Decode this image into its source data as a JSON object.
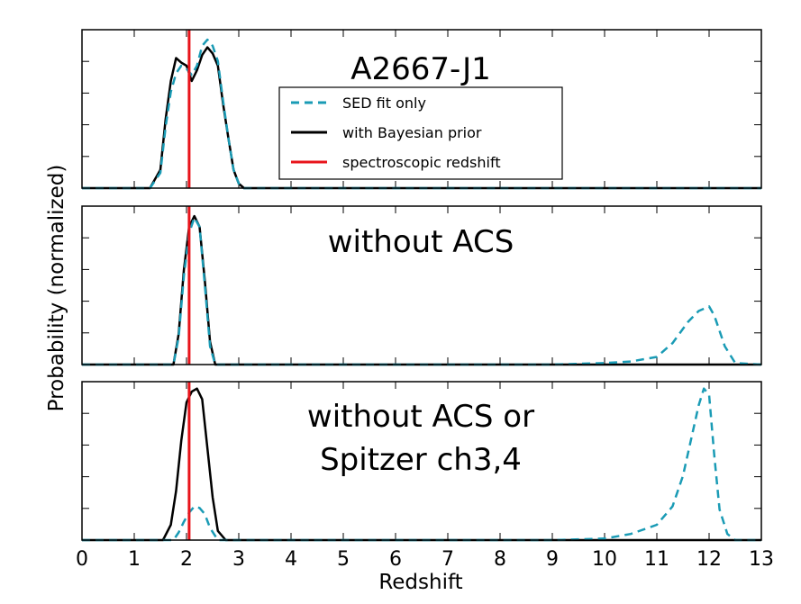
{
  "chart_data": {
    "type": "line",
    "xlabel": "Redshift",
    "ylabel": "Probability (normalized)",
    "xlim": [
      0,
      13
    ],
    "xticks": [
      "0",
      "1",
      "2",
      "3",
      "4",
      "5",
      "6",
      "7",
      "8",
      "9",
      "10",
      "11",
      "12",
      "13"
    ],
    "spectroscopic_redshift": 2.05,
    "legend": {
      "placement": "top-panel-center",
      "entries": [
        {
          "label": "SED fit only",
          "color": "#1a9bb5",
          "style": "dashed"
        },
        {
          "label": "with Bayesian prior",
          "color": "#000000",
          "style": "solid"
        },
        {
          "label": "spectroscopic redshift",
          "color": "#e8141b",
          "style": "solid"
        }
      ]
    },
    "panels": [
      {
        "title_lines": [
          "A2667-J1"
        ],
        "series": [
          {
            "name": "with Bayesian prior",
            "x": [
              0,
              1.3,
              1.5,
              1.6,
              1.7,
              1.8,
              1.9,
              2.0,
              2.1,
              2.2,
              2.3,
              2.4,
              2.5,
              2.6,
              2.7,
              2.8,
              2.9,
              3.0,
              3.1,
              13
            ],
            "y": [
              0,
              0,
              0.12,
              0.45,
              0.7,
              0.85,
              0.82,
              0.8,
              0.7,
              0.77,
              0.87,
              0.92,
              0.88,
              0.8,
              0.55,
              0.33,
              0.12,
              0.03,
              0,
              0
            ]
          },
          {
            "name": "SED fit only",
            "x": [
              0,
              1.3,
              1.5,
              1.6,
              1.7,
              1.8,
              1.9,
              2.0,
              2.1,
              2.2,
              2.3,
              2.4,
              2.5,
              2.6,
              2.7,
              2.8,
              2.9,
              3.0,
              3.1,
              13
            ],
            "y": [
              0,
              0,
              0.1,
              0.4,
              0.63,
              0.75,
              0.8,
              0.78,
              0.74,
              0.8,
              0.93,
              0.97,
              0.93,
              0.83,
              0.57,
              0.33,
              0.12,
              0.03,
              0,
              0
            ]
          }
        ]
      },
      {
        "title_lines": [
          "without ACS"
        ],
        "series": [
          {
            "name": "with Bayesian prior",
            "x": [
              0,
              1.75,
              1.85,
              1.95,
              2.05,
              2.15,
              2.25,
              2.35,
              2.45,
              2.55,
              13
            ],
            "y": [
              0,
              0,
              0.2,
              0.62,
              0.9,
              0.97,
              0.9,
              0.55,
              0.15,
              0,
              0
            ]
          },
          {
            "name": "SED fit only",
            "x": [
              0,
              1.75,
              1.85,
              1.95,
              2.05,
              2.15,
              2.25,
              2.35,
              2.45,
              2.55,
              9,
              10,
              10.5,
              11,
              11.3,
              11.6,
              11.8,
              12.0,
              12.1,
              12.3,
              12.5,
              13
            ],
            "y": [
              0,
              0,
              0.18,
              0.58,
              0.86,
              0.96,
              0.9,
              0.52,
              0.12,
              0,
              0,
              0.01,
              0.02,
              0.05,
              0.14,
              0.28,
              0.35,
              0.38,
              0.32,
              0.12,
              0.01,
              0
            ]
          }
        ]
      },
      {
        "title_lines": [
          "without ACS or",
          "Spitzer ch3,4"
        ],
        "series": [
          {
            "name": "with Bayesian prior",
            "x": [
              0,
              1.55,
              1.7,
              1.8,
              1.9,
              2.0,
              2.1,
              2.2,
              2.3,
              2.4,
              2.5,
              2.6,
              2.75,
              13
            ],
            "y": [
              0,
              0,
              0.1,
              0.32,
              0.65,
              0.9,
              0.97,
              0.99,
              0.92,
              0.6,
              0.28,
              0.06,
              0,
              0
            ]
          },
          {
            "name": "SED fit only",
            "x": [
              0,
              1.75,
              1.85,
              1.95,
              2.05,
              2.15,
              2.25,
              2.35,
              2.45,
              2.6,
              9,
              10,
              10.5,
              11,
              11.3,
              11.5,
              11.65,
              11.8,
              11.9,
              12.0,
              12.1,
              12.2,
              12.35,
              12.5,
              13
            ],
            "y": [
              0,
              0,
              0.05,
              0.12,
              0.18,
              0.22,
              0.21,
              0.17,
              0.08,
              0,
              0,
              0.01,
              0.04,
              0.1,
              0.22,
              0.42,
              0.65,
              0.88,
              0.99,
              0.95,
              0.55,
              0.2,
              0.04,
              0,
              0
            ]
          }
        ]
      }
    ]
  }
}
